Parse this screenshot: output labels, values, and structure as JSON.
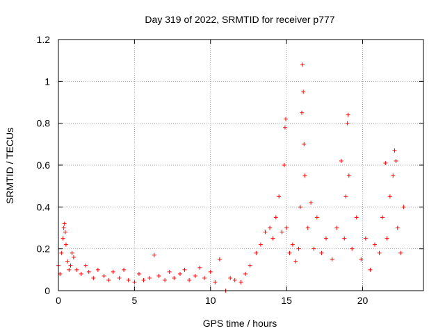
{
  "chart_data": {
    "type": "scatter",
    "title": "Day 319 of 2022, SRMTID for receiver p777",
    "xlabel": "GPS time / hours",
    "ylabel": "SRMTID / TECUs",
    "xlim": [
      0,
      24
    ],
    "ylim": [
      0,
      1.2
    ],
    "xticks": [
      0,
      5,
      10,
      15,
      20
    ],
    "xtick_labels": [
      "0",
      "5",
      "10",
      "15",
      "20"
    ],
    "yticks": [
      0,
      0.2,
      0.4,
      0.6,
      0.8,
      1.0,
      1.2
    ],
    "ytick_labels": [
      "0",
      "0.2",
      "0.4",
      "0.6",
      "0.8",
      "1",
      "1.2"
    ],
    "grid": true,
    "series": [
      {
        "name": "SRMTID",
        "marker": "+",
        "color": "#ff0000",
        "x": [
          0.0,
          0.1,
          0.2,
          0.3,
          0.35,
          0.4,
          0.45,
          0.5,
          0.6,
          0.7,
          0.8,
          0.9,
          1.0,
          1.2,
          1.5,
          1.8,
          2.0,
          2.3,
          2.6,
          3.0,
          3.3,
          3.6,
          4.0,
          4.3,
          4.6,
          5.0,
          5.3,
          5.6,
          6.0,
          6.3,
          6.6,
          7.0,
          7.3,
          7.6,
          8.0,
          8.3,
          8.6,
          9.0,
          9.3,
          9.6,
          10.0,
          10.3,
          10.6,
          11.0,
          11.3,
          11.6,
          12.0,
          12.3,
          12.6,
          13.0,
          13.3,
          13.6,
          13.9,
          14.1,
          14.3,
          14.5,
          14.7,
          14.85,
          14.9,
          14.95,
          15.0,
          15.2,
          15.4,
          15.6,
          15.8,
          15.9,
          16.0,
          16.05,
          16.1,
          16.15,
          16.2,
          16.4,
          16.6,
          16.8,
          17.0,
          17.3,
          17.6,
          18.0,
          18.3,
          18.6,
          18.8,
          18.9,
          19.0,
          19.05,
          19.1,
          19.3,
          19.6,
          19.9,
          20.2,
          20.5,
          20.8,
          21.1,
          21.3,
          21.5,
          21.6,
          21.8,
          22.0,
          22.1,
          22.2,
          22.3,
          22.5,
          22.7
        ],
        "y": [
          0.12,
          0.08,
          0.18,
          0.25,
          0.3,
          0.32,
          0.28,
          0.22,
          0.14,
          0.1,
          0.12,
          0.18,
          0.16,
          0.1,
          0.08,
          0.12,
          0.09,
          0.06,
          0.1,
          0.07,
          0.05,
          0.09,
          0.06,
          0.1,
          0.05,
          0.04,
          0.08,
          0.05,
          0.06,
          0.17,
          0.07,
          0.05,
          0.09,
          0.06,
          0.08,
          0.1,
          0.05,
          0.07,
          0.11,
          0.06,
          0.09,
          0.04,
          0.15,
          0.0,
          0.06,
          0.05,
          0.04,
          0.08,
          0.12,
          0.18,
          0.22,
          0.28,
          0.3,
          0.25,
          0.35,
          0.45,
          0.28,
          0.6,
          0.78,
          0.82,
          0.3,
          0.18,
          0.22,
          0.14,
          0.2,
          0.4,
          0.85,
          1.08,
          0.95,
          0.7,
          0.55,
          0.3,
          0.42,
          0.2,
          0.35,
          0.18,
          0.25,
          0.15,
          0.3,
          0.62,
          0.25,
          0.45,
          0.8,
          0.84,
          0.55,
          0.2,
          0.35,
          0.15,
          0.25,
          0.1,
          0.22,
          0.18,
          0.35,
          0.61,
          0.25,
          0.45,
          0.55,
          0.67,
          0.62,
          0.3,
          0.18,
          0.4
        ],
        "annotations": []
      }
    ]
  }
}
